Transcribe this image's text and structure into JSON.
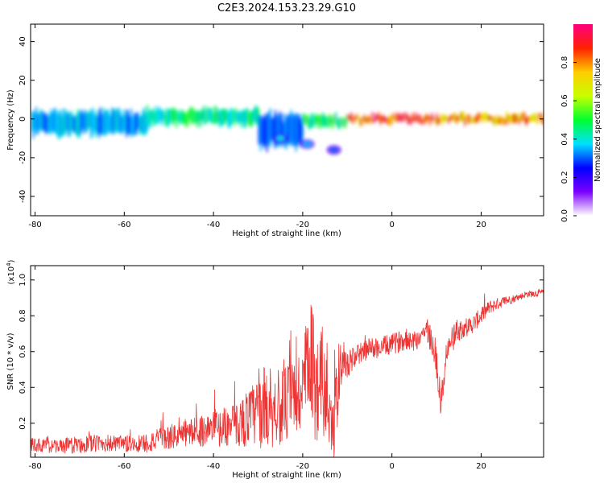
{
  "title": "C2E3.2024.153.23.29.G10",
  "chart_data": [
    {
      "type": "heatmap",
      "xlabel": "Height of straight line (km)",
      "ylabel": "Frequency (Hz)",
      "xlim": [
        -81,
        34
      ],
      "ylim": [
        -50,
        49
      ],
      "x_ticks": [
        -80,
        -60,
        -40,
        -20,
        0,
        20
      ],
      "y_ticks": [
        -40,
        -20,
        0,
        20,
        40
      ],
      "colorbar": {
        "label": "Normalized spectral amplitude",
        "range": [
          0.0,
          1.0
        ],
        "ticks": [
          0.0,
          0.2,
          0.4,
          0.6,
          0.8
        ],
        "colors": [
          "#ffffff",
          "#7a00ff",
          "#0000ff",
          "#00e0ff",
          "#00ff30",
          "#c8ff00",
          "#ffcc00",
          "#ff2000",
          "#ff0080"
        ]
      },
      "bands": [
        {
          "x": [
            -81,
            -55
          ],
          "center_hz": -2,
          "spread_hz": 6,
          "amplitude": 0.35
        },
        {
          "x": [
            -55,
            -30
          ],
          "center_hz": 1,
          "spread_hz": 4,
          "amplitude": 0.45
        },
        {
          "x": [
            -30,
            -20
          ],
          "center_hz": -6,
          "spread_hz": 8,
          "amplitude": 0.3
        },
        {
          "x": [
            -20,
            -10
          ],
          "center_hz": -1,
          "spread_hz": 3,
          "amplitude": 0.5
        },
        {
          "x": [
            -10,
            10
          ],
          "center_hz": 0,
          "spread_hz": 2,
          "amplitude": 0.9
        },
        {
          "x": [
            10,
            34
          ],
          "center_hz": 0,
          "spread_hz": 2,
          "amplitude": 0.8
        }
      ],
      "blobs": [
        {
          "x": -25,
          "y": -10,
          "amplitude": 0.4
        },
        {
          "x": -19,
          "y": -13,
          "amplitude": 0.35
        },
        {
          "x": -13,
          "y": -16,
          "amplitude": 0.3
        }
      ]
    },
    {
      "type": "line",
      "xlabel": "Height of straight line (km)",
      "ylabel": "SNR (10 * v/v)",
      "y_multiplier": "(x10",
      "y_multiplier_exp": "4",
      "y_multiplier_close": ")",
      "xlim": [
        -81,
        34
      ],
      "ylim": [
        0.01,
        1.08
      ],
      "x_ticks": [
        -80,
        -60,
        -40,
        -20,
        0,
        20
      ],
      "y_ticks": [
        0.2,
        0.4,
        0.6,
        0.8,
        1.0
      ],
      "color": "#ee3333",
      "x": [
        -81,
        -75,
        -70,
        -65,
        -60,
        -55,
        -50,
        -45,
        -40,
        -35,
        -30,
        -28,
        -25,
        -22,
        -20,
        -18,
        -17,
        -16,
        -15,
        -14,
        -13,
        -12,
        -11,
        -10,
        -8,
        -5,
        -3,
        0,
        3,
        5,
        8,
        10,
        11,
        12,
        13,
        15,
        18,
        20,
        22,
        25,
        28,
        30,
        34
      ],
      "values": [
        0.08,
        0.07,
        0.08,
        0.09,
        0.08,
        0.09,
        0.12,
        0.15,
        0.17,
        0.19,
        0.26,
        0.3,
        0.28,
        0.34,
        0.38,
        0.56,
        0.35,
        0.58,
        0.3,
        0.35,
        0.12,
        0.45,
        0.58,
        0.52,
        0.58,
        0.62,
        0.62,
        0.64,
        0.67,
        0.66,
        0.72,
        0.55,
        0.3,
        0.55,
        0.65,
        0.72,
        0.75,
        0.8,
        0.85,
        0.88,
        0.9,
        0.92,
        0.93
      ],
      "noise_amplitude": [
        0.04,
        0.04,
        0.05,
        0.05,
        0.05,
        0.06,
        0.07,
        0.08,
        0.1,
        0.12,
        0.2,
        0.25,
        0.2,
        0.25,
        0.3,
        0.35,
        0.3,
        0.35,
        0.3,
        0.3,
        0.25,
        0.2,
        0.1,
        0.08,
        0.06,
        0.06,
        0.06,
        0.06,
        0.06,
        0.06,
        0.08,
        0.1,
        0.08,
        0.1,
        0.08,
        0.06,
        0.05,
        0.05,
        0.04,
        0.03,
        0.02,
        0.02,
        0.02
      ]
    }
  ]
}
